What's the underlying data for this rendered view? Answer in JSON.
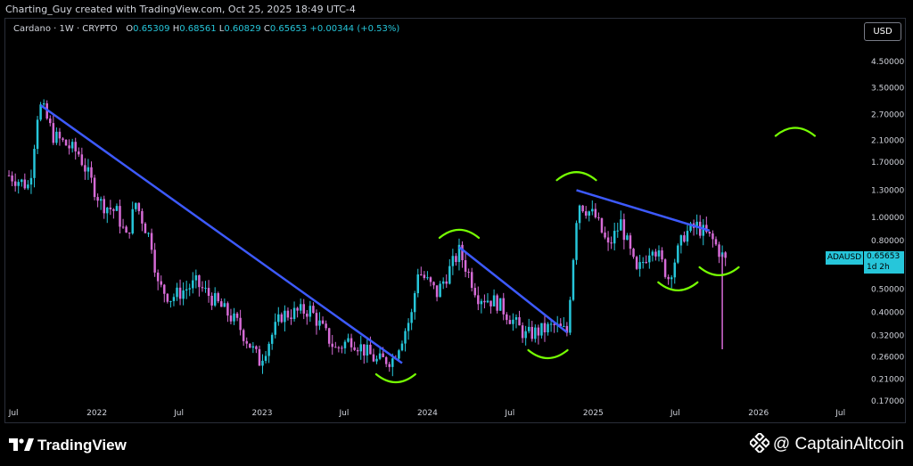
{
  "attribution": "Charting_Guy created with TradingView.com, Oct 25, 2025 18:49 UTC-4",
  "legend": {
    "symbol_line": "Cardano · 1W · CRYPTO",
    "open_label": "O",
    "open": "0.65309",
    "high_label": "H",
    "high": "0.68561",
    "low_label": "L",
    "low": "0.60829",
    "close_label": "C",
    "close": "0.65653",
    "change": "+0.00344 (+0.53%)"
  },
  "currency_button": "USD",
  "price_tag": {
    "symbol": "ADAUSD",
    "price": "0.65653",
    "countdown": "1d 2h"
  },
  "footer": {
    "logo_text": "TradingView",
    "watermark_text": "@ CaptainAltcoin"
  },
  "colors": {
    "candle_up": "#26c6da",
    "candle_down": "#d66bd6",
    "trendline": "#3d5afe",
    "annotation": "#76ff03",
    "background": "#000000"
  },
  "chart_data": {
    "type": "candlestick",
    "title": "",
    "scale": "log",
    "ylim": [
      0.17,
      5.3
    ],
    "y_ticks": [
      "4.50000",
      "3.50000",
      "2.70000",
      "2.10000",
      "1.70000",
      "1.30000",
      "1.00000",
      "0.80000",
      "0.50000",
      "0.40000",
      "0.32000",
      "0.26000",
      "0.21000",
      "0.17000"
    ],
    "x_ticks": [
      "Jul",
      "2022",
      "Jul",
      "2023",
      "Jul",
      "2024",
      "Jul",
      "2025",
      "Jul",
      "2026",
      "Jul"
    ],
    "x_range": [
      "2021-06-15",
      "2026-08-10"
    ],
    "last_date": "2025-10-25",
    "anchors": [
      [
        "2021-06-21",
        1.5
      ],
      [
        "2021-08-05",
        1.35
      ],
      [
        "2021-08-23",
        2.7
      ],
      [
        "2021-09-01",
        2.95
      ],
      [
        "2021-09-27",
        2.2
      ],
      [
        "2021-11-22",
        1.85
      ],
      [
        "2022-01-10",
        1.15
      ],
      [
        "2022-02-14",
        1.05
      ],
      [
        "2022-03-07",
        0.82
      ],
      [
        "2022-03-28",
        1.15
      ],
      [
        "2022-05-02",
        0.78
      ],
      [
        "2022-05-16",
        0.52
      ],
      [
        "2022-06-13",
        0.46
      ],
      [
        "2022-08-08",
        0.53
      ],
      [
        "2022-09-12",
        0.46
      ],
      [
        "2022-11-07",
        0.36
      ],
      [
        "2022-12-26",
        0.25
      ],
      [
        "2023-02-13",
        0.39
      ],
      [
        "2023-04-17",
        0.41
      ],
      [
        "2023-06-12",
        0.28
      ],
      [
        "2023-07-17",
        0.31
      ],
      [
        "2023-09-11",
        0.25
      ],
      [
        "2023-10-16",
        0.255
      ],
      [
        "2023-11-27",
        0.39
      ],
      [
        "2023-12-11",
        0.6
      ],
      [
        "2024-01-22",
        0.48
      ],
      [
        "2024-03-11",
        0.72
      ],
      [
        "2024-04-22",
        0.47
      ],
      [
        "2024-06-03",
        0.44
      ],
      [
        "2024-08-05",
        0.32
      ],
      [
        "2024-10-07",
        0.35
      ],
      [
        "2024-11-04",
        0.33
      ],
      [
        "2024-11-25",
        1.0
      ],
      [
        "2024-12-02",
        1.15
      ],
      [
        "2025-01-06",
        1.0
      ],
      [
        "2025-02-03",
        0.75
      ],
      [
        "2025-03-03",
        0.95
      ],
      [
        "2025-04-07",
        0.58
      ],
      [
        "2025-05-12",
        0.78
      ],
      [
        "2025-06-16",
        0.56
      ],
      [
        "2025-07-21",
        0.85
      ],
      [
        "2025-08-18",
        0.92
      ],
      [
        "2025-09-22",
        0.8
      ],
      [
        "2025-10-20",
        0.65653
      ]
    ],
    "annotations": {
      "trendlines": [
        {
          "from": [
            "2021-08-30",
            2.95
          ],
          "to": [
            "2023-11-06",
            0.245
          ]
        },
        {
          "from": [
            "2024-03-11",
            0.75
          ],
          "to": [
            "2024-11-04",
            0.33
          ]
        },
        {
          "from": [
            "2024-11-25",
            1.3
          ],
          "to": [
            "2025-09-15",
            0.88
          ]
        }
      ],
      "arcs": [
        {
          "at": [
            "2023-10-23",
            0.21
          ],
          "shape": "smile"
        },
        {
          "at": [
            "2024-03-11",
            0.86
          ],
          "shape": "frown"
        },
        {
          "at": [
            "2024-09-23",
            0.265
          ],
          "shape": "smile"
        },
        {
          "at": [
            "2024-11-25",
            1.5
          ],
          "shape": "frown"
        },
        {
          "at": [
            "2025-07-07",
            0.51
          ],
          "shape": "smile"
        },
        {
          "at": [
            "2025-10-06",
            0.59
          ],
          "shape": "smile"
        },
        {
          "at": [
            "2026-03-23",
            2.3
          ],
          "shape": "frown"
        }
      ]
    }
  }
}
